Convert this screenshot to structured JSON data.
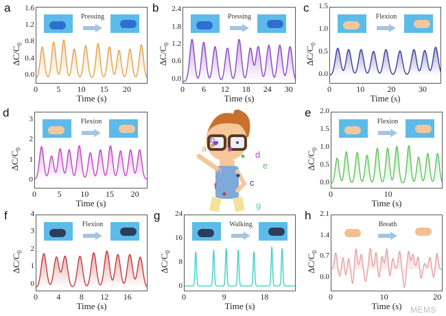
{
  "axis_labels": {
    "x": "Time (s)",
    "y_prefix": "ΔC/C",
    "y_sub": "0"
  },
  "watermark": "MEMS",
  "body_labels": [
    "a",
    "b",
    "c",
    "d",
    "e",
    "f",
    "g",
    "h"
  ],
  "chart_data": [
    {
      "id": "a",
      "type": "line",
      "action": "Pressing",
      "color": "#e3a24a",
      "xlim": [
        0,
        24.5
      ],
      "ylim": [
        -0.2,
        1.65
      ],
      "xticks": [
        0,
        5,
        10,
        15,
        20
      ],
      "yticks": [
        "0.0",
        "0.4",
        "0.8",
        "1.2",
        "1.6"
      ],
      "yvals": [
        0,
        0.4,
        0.8,
        1.2,
        1.6
      ],
      "baseline": -0.05,
      "width": 0.45,
      "peaks": [
        [
          1.3,
          0.75
        ],
        [
          3.8,
          0.87
        ],
        [
          6,
          0.92
        ],
        [
          8.3,
          0.7
        ],
        [
          10.8,
          0.78
        ],
        [
          13.5,
          0.83
        ],
        [
          16,
          0.75
        ],
        [
          18.1,
          0.67
        ],
        [
          20.5,
          0.7
        ],
        [
          23,
          0.8
        ]
      ]
    },
    {
      "id": "b",
      "type": "line",
      "action": "Pressing",
      "color": "#8a44c4",
      "xlim": [
        0,
        32
      ],
      "ylim": [
        -0.15,
        2.5
      ],
      "xticks": [
        0,
        6,
        12,
        18,
        24,
        30
      ],
      "yticks": [
        "0.0",
        "0.6",
        "1.2",
        "1.8",
        "2.4"
      ],
      "yvals": [
        0,
        0.6,
        1.2,
        1.8,
        2.4
      ],
      "baseline": -0.05,
      "width": 0.65,
      "peaks": [
        [
          2.5,
          1.45
        ],
        [
          5.8,
          1.35
        ],
        [
          9,
          1.2
        ],
        [
          12.5,
          1.15
        ],
        [
          15.8,
          1.45
        ],
        [
          19,
          1.15
        ],
        [
          21.2,
          1.2
        ],
        [
          24.2,
          1.25
        ],
        [
          27.3,
          1.25
        ],
        [
          30.2,
          1.2
        ]
      ]
    },
    {
      "id": "c",
      "type": "line",
      "action": "Flexion",
      "color": "#3a3a9a",
      "xlim": [
        0,
        36
      ],
      "ylim": [
        -0.2,
        1.5
      ],
      "xticks": [
        0,
        10,
        20,
        30
      ],
      "yticks": [
        "0.0",
        "0.5",
        "1.0",
        "1.5"
      ],
      "yvals": [
        0,
        0.5,
        1.0,
        1.5
      ],
      "baseline": 0.0,
      "width": 0.8,
      "peaks": [
        [
          2.5,
          0.6
        ],
        [
          6,
          0.57
        ],
        [
          10,
          0.57
        ],
        [
          14,
          0.53
        ],
        [
          18,
          0.57
        ],
        [
          22.5,
          0.54
        ],
        [
          27,
          0.57
        ],
        [
          30.5,
          0.55
        ],
        [
          34,
          0.62
        ]
      ]
    },
    {
      "id": "d",
      "type": "line",
      "action": "Flexion",
      "color": "#c244c4",
      "xlim": [
        0,
        22.5
      ],
      "ylim": [
        -0.4,
        3.4
      ],
      "xticks": [
        0,
        5,
        10,
        15,
        20
      ],
      "yticks": [
        "0",
        "1",
        "2",
        "3"
      ],
      "yvals": [
        0,
        1,
        2,
        3
      ],
      "baseline": 0.1,
      "width": 0.42,
      "peaks": [
        [
          1.3,
          1.6
        ],
        [
          3.3,
          1.15
        ],
        [
          5,
          1.5
        ],
        [
          6.8,
          1.45
        ],
        [
          8.8,
          1.65
        ],
        [
          11,
          1.3
        ],
        [
          13,
          1.45
        ],
        [
          15,
          1.65
        ],
        [
          17,
          1.4
        ],
        [
          19,
          1.45
        ],
        [
          20.8,
          1.45
        ]
      ]
    },
    {
      "id": "e",
      "type": "line",
      "action": "Flexion",
      "color": "#5cc45c",
      "xlim": [
        0,
        19.5
      ],
      "ylim": [
        -0.15,
        2.0
      ],
      "xticks": [
        0,
        10
      ],
      "yticks": [
        "0.0",
        "0.5",
        "1.0",
        "1.5",
        "2.0"
      ],
      "yvals": [
        0,
        0.5,
        1.0,
        1.5,
        2.0
      ],
      "baseline": 0.02,
      "width": 0.32,
      "peaks": [
        [
          1,
          0.7
        ],
        [
          2.6,
          0.88
        ],
        [
          4.5,
          0.86
        ],
        [
          6.2,
          0.78
        ],
        [
          8,
          0.98
        ],
        [
          9.8,
          0.98
        ],
        [
          11.4,
          1.03
        ],
        [
          13.5,
          1.05
        ],
        [
          15.2,
          0.73
        ],
        [
          16.8,
          0.83
        ],
        [
          18.5,
          0.83
        ]
      ]
    },
    {
      "id": "f",
      "type": "line",
      "action": "Flexion",
      "color": "#c23a3a",
      "xlim": [
        0,
        19.5
      ],
      "ylim": [
        -0.4,
        4
      ],
      "xticks": [
        0,
        4,
        8,
        12,
        16
      ],
      "yticks": [
        "0",
        "1",
        "2",
        "3",
        "4"
      ],
      "yvals": [
        0,
        1,
        2,
        3,
        4
      ],
      "baseline": -0.15,
      "width": 0.45,
      "peaks": [
        [
          1.3,
          1.95
        ],
        [
          3.5,
          1.75
        ],
        [
          5,
          1.8
        ],
        [
          7.6,
          1.8
        ],
        [
          10,
          2.0
        ],
        [
          12.3,
          2.1
        ],
        [
          14.2,
          1.9
        ],
        [
          16.3,
          1.9
        ],
        [
          18.1,
          1.75
        ]
      ]
    },
    {
      "id": "g",
      "type": "line",
      "action": "Walking",
      "color": "#45d2c8",
      "xlim": [
        0,
        25
      ],
      "ylim": [
        -1.5,
        24
      ],
      "xticks": [
        0,
        9,
        18
      ],
      "yticks": [
        "0",
        "8",
        "16",
        "24"
      ],
      "yvals": [
        0,
        8,
        16,
        24
      ],
      "baseline": 0.5,
      "width": 0.17,
      "peaks": [
        [
          2.5,
          11.5
        ],
        [
          6.5,
          12
        ],
        [
          9.3,
          12.5
        ],
        [
          12,
          12
        ],
        [
          15.5,
          11.5
        ],
        [
          19.5,
          13
        ],
        [
          21.8,
          12.5
        ]
      ]
    },
    {
      "id": "h",
      "type": "line",
      "action": "Breath",
      "color": "#e8a3a3",
      "xlim": [
        0,
        21
      ],
      "ylim": [
        -0.45,
        2.1
      ],
      "xticks": [
        0,
        10,
        20
      ],
      "yticks": [
        "0.0",
        "0.7",
        "1.4",
        "2.1"
      ],
      "yvals": [
        0,
        0.7,
        1.4,
        2.1
      ],
      "baseline": 0.3,
      "width": 0.25,
      "peaks": [
        [
          0.8,
          0.55
        ],
        [
          2.2,
          0.45
        ],
        [
          3.2,
          0.4
        ],
        [
          4.6,
          0.7
        ],
        [
          5.6,
          0.5
        ],
        [
          6.4,
          -0.4
        ],
        [
          7.3,
          0.7
        ],
        [
          8.4,
          0.6
        ],
        [
          9.5,
          0.45
        ],
        [
          10.4,
          0.7
        ],
        [
          11.5,
          0.4
        ],
        [
          12.8,
          0.6
        ],
        [
          13.7,
          -0.6
        ],
        [
          14.5,
          0.6
        ],
        [
          15.3,
          0.5
        ],
        [
          16.3,
          0.45
        ],
        [
          17.5,
          0.2
        ],
        [
          18.5,
          0.4
        ],
        [
          19.8,
          0.55
        ],
        [
          4.0,
          -0.5
        ],
        [
          2.7,
          -0.3
        ],
        [
          8.9,
          -0.35
        ],
        [
          11.0,
          -0.3
        ],
        [
          16.8,
          -0.35
        ],
        [
          19.2,
          -0.3
        ],
        [
          1.6,
          -0.25
        ]
      ]
    }
  ]
}
